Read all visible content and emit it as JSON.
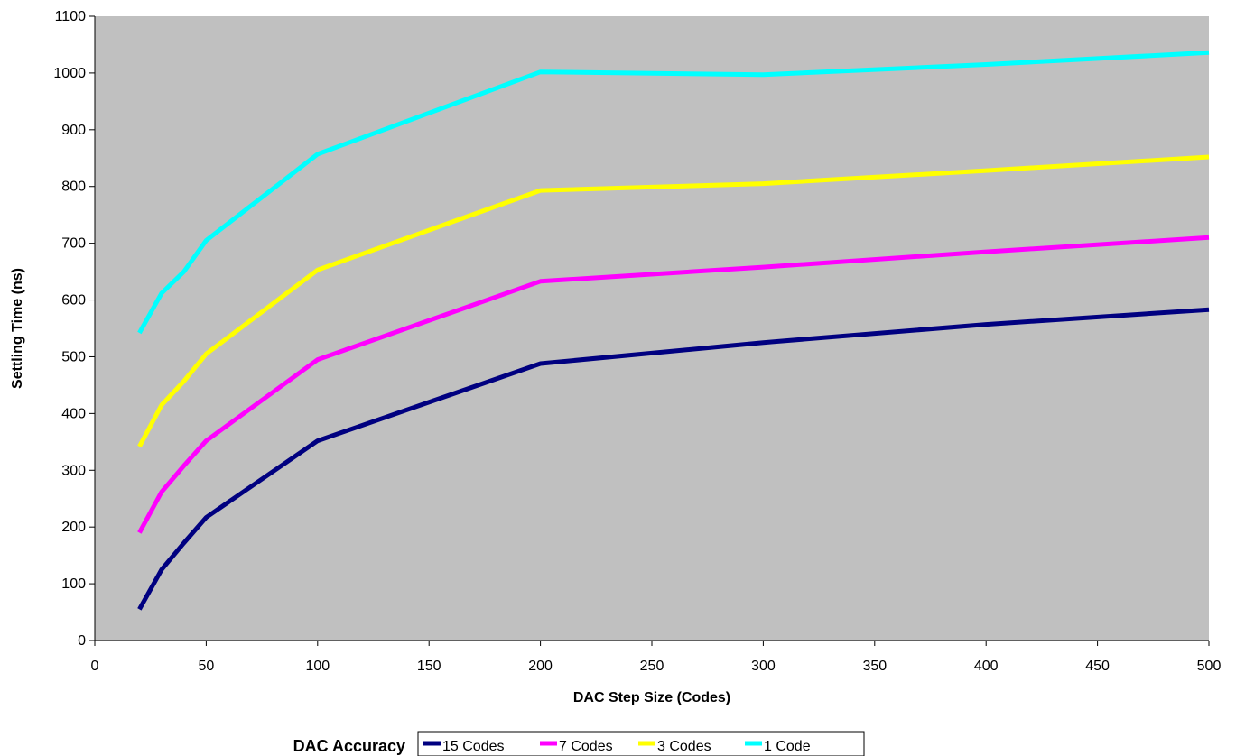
{
  "chart_data": {
    "type": "line",
    "title": "",
    "xlabel": "DAC Step Size (Codes)",
    "ylabel": "Settling Time (ns)",
    "xlim": [
      0,
      500
    ],
    "ylim": [
      0,
      1100
    ],
    "xticks": [
      0,
      50,
      100,
      150,
      200,
      250,
      300,
      350,
      400,
      450,
      500
    ],
    "yticks": [
      0,
      100,
      200,
      300,
      400,
      500,
      600,
      700,
      800,
      900,
      1000,
      1100
    ],
    "grid": false,
    "plot_background": "#c0c0c0",
    "legend_title": "DAC Accuracy",
    "legend_position": "bottom",
    "x": [
      20,
      30,
      40,
      50,
      100,
      200,
      300,
      400,
      500
    ],
    "series": [
      {
        "name": "15 Codes",
        "color": "#000080",
        "values": [
          55,
          125,
          172,
          217,
          352,
          488,
          525,
          557,
          583
        ]
      },
      {
        "name": "7 Codes",
        "color": "#ff00ff",
        "values": [
          190,
          262,
          308,
          352,
          495,
          633,
          658,
          685,
          710
        ]
      },
      {
        "name": "3 Codes",
        "color": "#ffff00",
        "values": [
          342,
          415,
          457,
          505,
          653,
          793,
          805,
          828,
          852
        ]
      },
      {
        "name": "1 Code",
        "color": "#00ffff",
        "values": [
          542,
          612,
          650,
          705,
          857,
          1002,
          997,
          1015,
          1036
        ]
      }
    ]
  }
}
